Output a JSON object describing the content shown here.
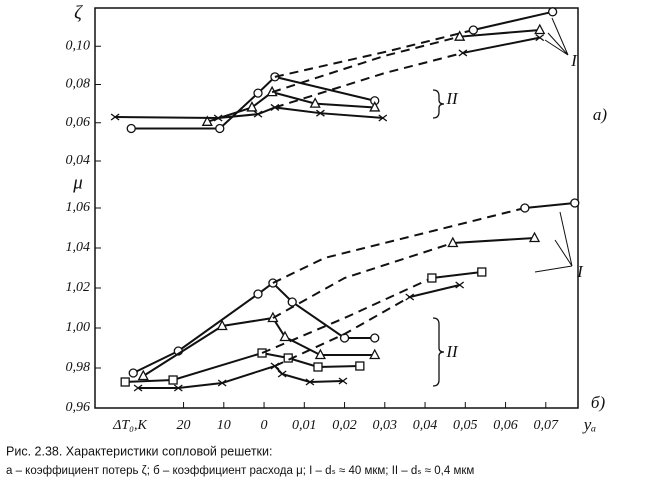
{
  "chart_data": [
    {
      "type": "line",
      "ylabel": "ζ",
      "xlim": [
        -0.042,
        0.078
      ],
      "ylim": [
        0.04,
        0.12
      ],
      "yticks": [
        {
          "value": 0.04,
          "label": "0,04"
        },
        {
          "value": 0.06,
          "label": "0,06"
        },
        {
          "value": 0.08,
          "label": "0,08"
        },
        {
          "value": 0.1,
          "label": "0,10"
        }
      ],
      "annotations": [
        "I",
        "II",
        "a)"
      ],
      "series": [
        {
          "marker": "circle",
          "dashed": false,
          "x": [
            -0.033,
            -0.011,
            -0.0015,
            0.0027,
            0.0275
          ],
          "values": [
            0.057,
            0.057,
            0.0755,
            0.084,
            0.0715
          ]
        },
        {
          "marker": "triangle",
          "dashed": false,
          "x": [
            -0.0141,
            -0.003,
            0.002,
            0.0127,
            0.0275
          ],
          "values": [
            0.0605,
            0.068,
            0.076,
            0.07,
            0.068
          ]
        },
        {
          "marker": "cross",
          "dashed": false,
          "x": [
            -0.037,
            -0.0114,
            -0.0015,
            0.0027,
            0.014,
            0.0295
          ],
          "values": [
            0.063,
            0.0625,
            0.0645,
            0.068,
            0.065,
            0.0625
          ]
        },
        {
          "marker": null,
          "dashed": true,
          "x": [
            0.0027,
            0.03,
            0.052
          ],
          "values": [
            0.084,
            0.097,
            0.1085
          ]
        },
        {
          "marker": null,
          "dashed": true,
          "x": [
            0.002,
            0.03,
            0.0486
          ],
          "values": [
            0.076,
            0.095,
            0.105
          ]
        },
        {
          "marker": null,
          "dashed": true,
          "x": [
            0.0027,
            0.03,
            0.0494
          ],
          "values": [
            0.068,
            0.086,
            0.0965
          ]
        },
        {
          "marker": "circle",
          "dashed": false,
          "x": [
            0.052,
            0.0717
          ],
          "values": [
            0.1085,
            0.118
          ]
        },
        {
          "marker": "triangle",
          "dashed": false,
          "x": [
            0.0486,
            0.0685
          ],
          "values": [
            0.105,
            0.1085
          ]
        },
        {
          "marker": "cross",
          "dashed": false,
          "x": [
            0.0494,
            0.0685
          ],
          "values": [
            0.0965,
            0.1045
          ]
        }
      ]
    },
    {
      "type": "line",
      "ylabel": "μ",
      "xlabel": "ΔT₀,K",
      "xlabel_right": "yₐ",
      "xlim": [
        -0.042,
        0.078
      ],
      "ylim": [
        0.96,
        1.075
      ],
      "xticks": [
        {
          "value": -0.02,
          "label": "20"
        },
        {
          "value": -0.01,
          "label": "10"
        },
        0,
        {
          "value": 0.01,
          "label": "0,01"
        },
        {
          "value": 0.02,
          "label": "0,02"
        },
        {
          "value": 0.03,
          "label": "0,03"
        },
        {
          "value": 0.04,
          "label": "0,04"
        },
        {
          "value": 0.05,
          "label": "0,05"
        },
        {
          "value": 0.06,
          "label": "0,06"
        },
        {
          "value": 0.07,
          "label": "0,07"
        }
      ],
      "yticks": [
        {
          "value": 0.96,
          "label": "0,96"
        },
        {
          "value": 0.98,
          "label": "0,98"
        },
        {
          "value": 1.0,
          "label": "1,00"
        },
        {
          "value": 1.02,
          "label": "1,02"
        },
        {
          "value": 1.04,
          "label": "1,04"
        },
        {
          "value": 1.06,
          "label": "1,06"
        }
      ],
      "annotations": [
        "I",
        "II",
        "б)"
      ],
      "series": [
        {
          "marker": "circle",
          "dashed": false,
          "x": [
            -0.0325,
            -0.0213,
            -0.0015,
            0.0022,
            0.007,
            0.02,
            0.0275
          ],
          "values": [
            0.9775,
            0.9885,
            1.017,
            1.0225,
            1.013,
            0.995,
            0.995
          ]
        },
        {
          "marker": "triangle",
          "dashed": false,
          "x": [
            -0.03,
            -0.0104,
            0.0022,
            0.0052,
            0.014,
            0.0275
          ],
          "values": [
            0.976,
            1.001,
            1.005,
            0.9955,
            0.9865,
            0.9865
          ]
        },
        {
          "marker": "square",
          "dashed": false,
          "x": [
            -0.0345,
            -0.0226,
            -0.0005,
            0.006,
            0.0134,
            0.0238
          ],
          "values": [
            0.973,
            0.974,
            0.9875,
            0.985,
            0.9805,
            0.981
          ]
        },
        {
          "marker": "cross",
          "dashed": false,
          "x": [
            -0.0313,
            -0.0213,
            -0.0104,
            0.0027,
            0.0045,
            0.0114,
            0.0196
          ],
          "values": [
            0.97,
            0.97,
            0.9725,
            0.981,
            0.977,
            0.973,
            0.9735
          ]
        },
        {
          "marker": null,
          "dashed": true,
          "x": [
            0.0022,
            0.015,
            0.0648
          ],
          "values": [
            1.0225,
            1.035,
            1.06
          ]
        },
        {
          "marker": null,
          "dashed": true,
          "x": [
            0.0022,
            0.02,
            0.0469
          ],
          "values": [
            1.005,
            1.025,
            1.0425
          ]
        },
        {
          "marker": null,
          "dashed": true,
          "x": [
            -0.0005,
            0.02,
            0.0417
          ],
          "values": [
            0.9875,
            1.005,
            1.025
          ]
        },
        {
          "marker": null,
          "dashed": true,
          "x": [
            0.0027,
            0.02,
            0.0362
          ],
          "values": [
            0.981,
            0.997,
            1.0155
          ]
        },
        {
          "marker": "circle",
          "dashed": false,
          "x": [
            0.0648,
            0.0772
          ],
          "values": [
            1.06,
            1.0625
          ]
        },
        {
          "marker": "triangle",
          "dashed": false,
          "x": [
            0.0469,
            0.0672
          ],
          "values": [
            1.0425,
            1.045
          ]
        },
        {
          "marker": "square",
          "dashed": false,
          "x": [
            0.0417,
            0.0541
          ],
          "values": [
            1.025,
            1.028
          ]
        },
        {
          "marker": "cross",
          "dashed": false,
          "x": [
            0.0362,
            0.0486
          ],
          "values": [
            1.0155,
            1.0215
          ]
        }
      ]
    }
  ],
  "caption": {
    "title": "Рис. 2.38. Характеристики сопловой решетки:",
    "text": "а – коэффициент потерь ζ; б – коэффициент расхода μ; I – dₛ ≈ 40 мкм; II – dₛ ≈ 0,4 мкм"
  }
}
